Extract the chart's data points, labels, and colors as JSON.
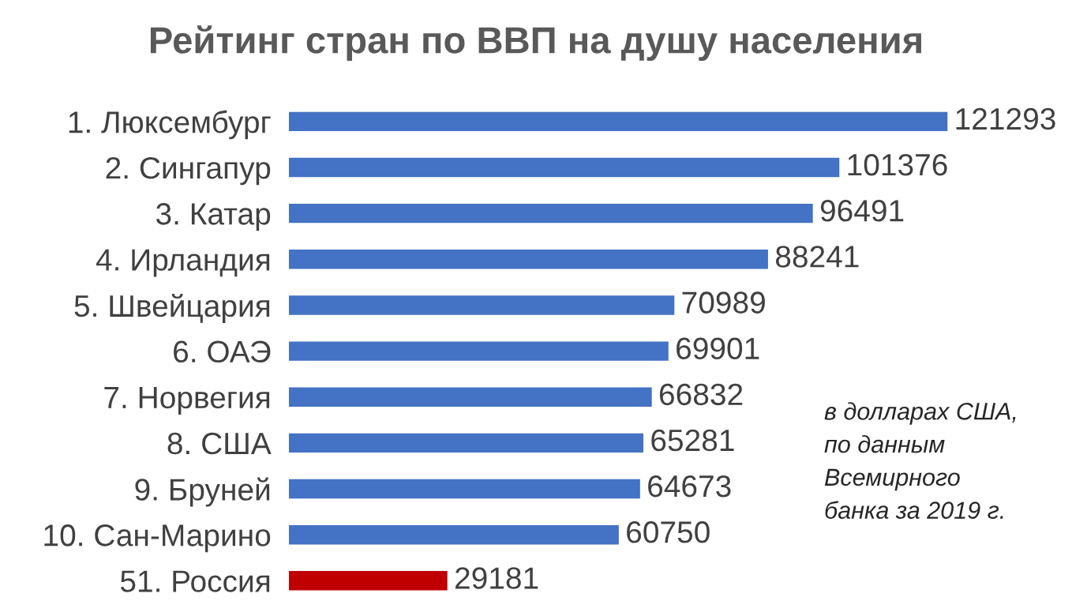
{
  "chart_data": {
    "type": "bar",
    "orientation": "horizontal",
    "title": "Рейтинг стран по ВВП на душу населения",
    "categories": [
      "1. Люксембург",
      "2. Сингапур",
      "3. Катар",
      "4. Ирландия",
      "5. Швейцария",
      "6. ОАЭ",
      "7. Норвегия",
      "8. США",
      "9. Бруней",
      "10. Сан-Марино",
      "51. Россия"
    ],
    "values": [
      121293,
      101376,
      96491,
      88241,
      70989,
      69901,
      66832,
      65281,
      64673,
      60750,
      29181
    ],
    "colors": [
      "#4472c4",
      "#4472c4",
      "#4472c4",
      "#4472c4",
      "#4472c4",
      "#4472c4",
      "#4472c4",
      "#4472c4",
      "#4472c4",
      "#4472c4",
      "#c00000"
    ],
    "data_labels": true,
    "tick_labels": "y",
    "grid": false,
    "legend": false,
    "annotations": [
      "в долларах США,\nпо данным\nВсемирного\nбанка за 2019 г."
    ]
  }
}
